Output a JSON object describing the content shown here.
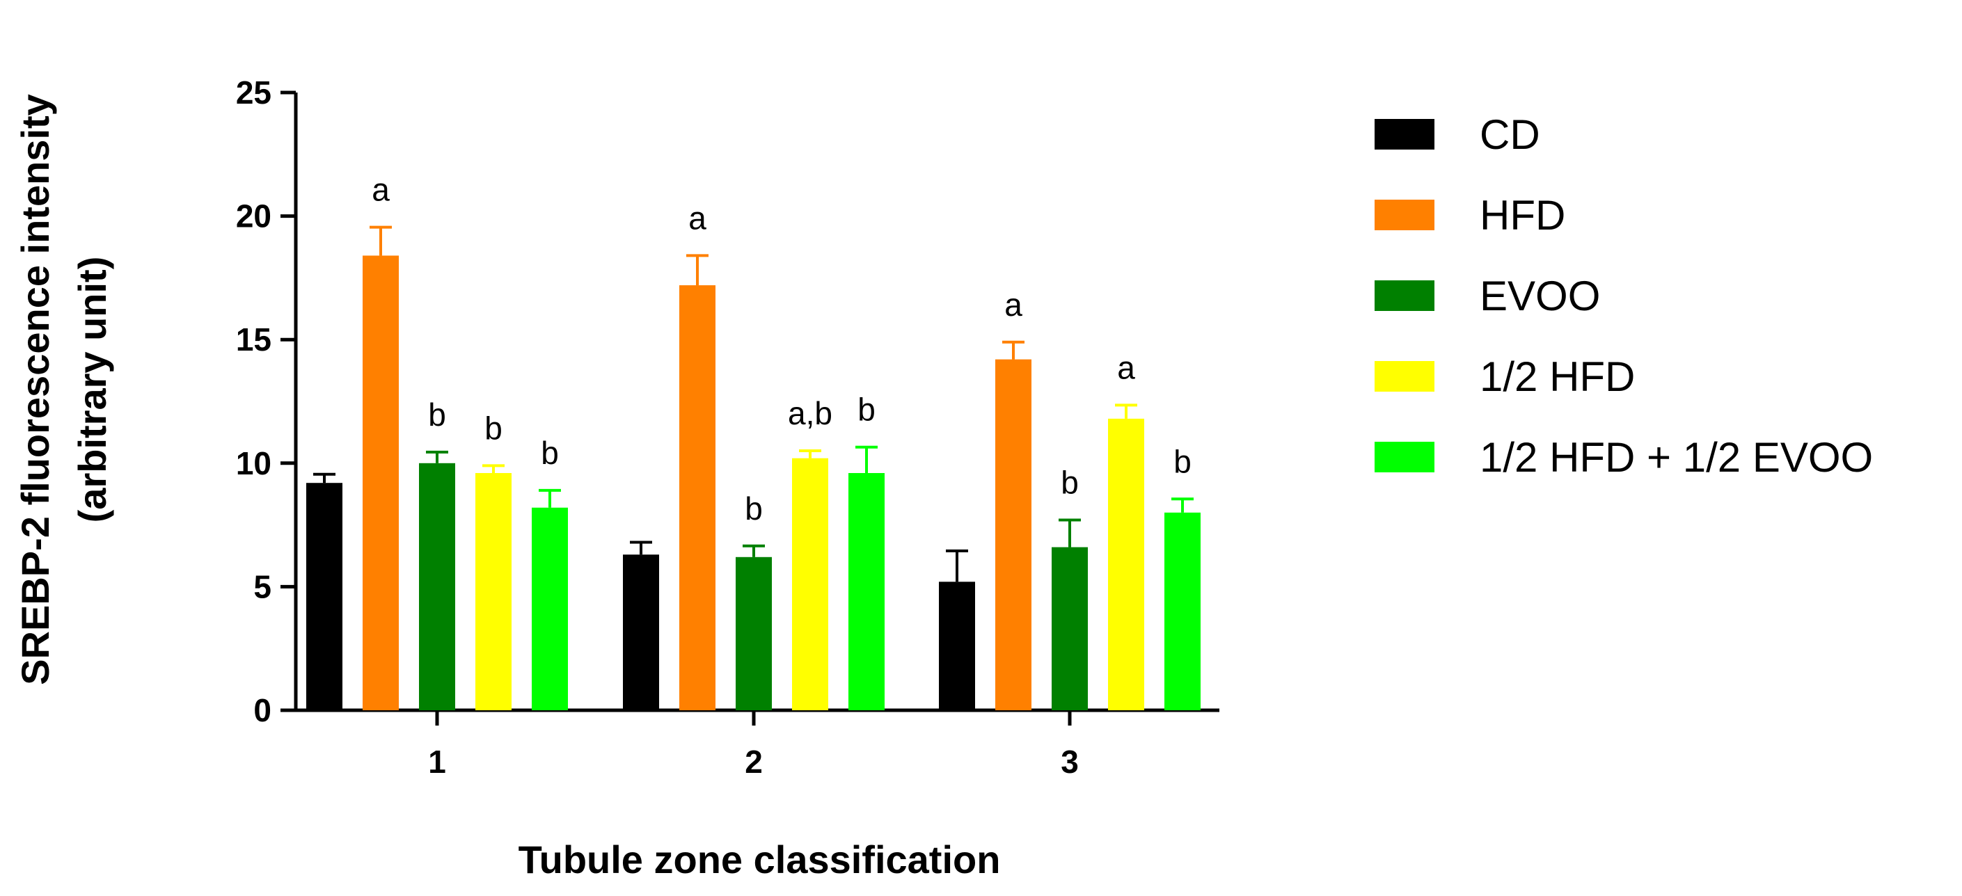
{
  "chart_data": {
    "type": "bar",
    "title": "",
    "xlabel": "Tubule zone classification",
    "ylabel_lines": [
      "SREBP-2 fluorescence intensity",
      "(arbitrary unit)"
    ],
    "ylim": [
      0,
      25
    ],
    "yticks": [
      "0",
      "5",
      "10",
      "15",
      "20",
      "25"
    ],
    "categories": [
      "1",
      "2",
      "3"
    ],
    "legend_position": "right",
    "grid": false,
    "series": [
      {
        "name": "CD",
        "color": "#000000",
        "values": [
          9.2,
          6.3,
          5.2
        ],
        "errors": [
          0.35,
          0.5,
          1.25
        ],
        "sig": [
          "",
          "",
          ""
        ]
      },
      {
        "name": "HFD",
        "color": "#ff8000",
        "values": [
          18.4,
          17.2,
          14.2
        ],
        "errors": [
          1.15,
          1.2,
          0.7
        ],
        "sig": [
          "a",
          "a",
          "a"
        ]
      },
      {
        "name": "EVOO",
        "color": "#008000",
        "values": [
          10.0,
          6.2,
          6.6
        ],
        "errors": [
          0.45,
          0.45,
          1.1
        ],
        "sig": [
          "b",
          "b",
          "b"
        ]
      },
      {
        "name": "1/2 HFD",
        "color": "#ffff00",
        "values": [
          9.6,
          10.2,
          11.8
        ],
        "errors": [
          0.3,
          0.3,
          0.55
        ],
        "sig": [
          "b",
          "a,b",
          "a"
        ]
      },
      {
        "name": "1/2 HFD + 1/2 EVOO",
        "color": "#00ff00",
        "values": [
          8.2,
          9.6,
          8.0
        ],
        "errors": [
          0.7,
          1.05,
          0.55
        ],
        "sig": [
          "b",
          "b",
          "b"
        ]
      }
    ]
  }
}
